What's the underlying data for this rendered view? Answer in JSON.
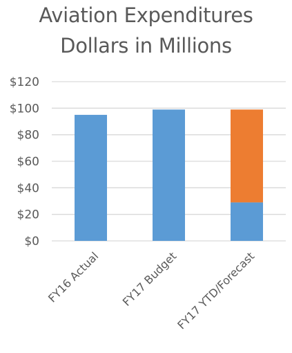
{
  "chart_data": {
    "type": "bar",
    "stacked": true,
    "title": [
      "Aviation Expenditures",
      "Dollars in Millions"
    ],
    "xlabel": "",
    "ylabel": "",
    "categories": [
      "FY16 Actual",
      "FY17 Budget",
      "FY17 YTD/Forecast"
    ],
    "series": [
      {
        "values": [
          95,
          99,
          29
        ],
        "color": "#5B9BD5"
      },
      {
        "values": [
          0,
          0,
          70
        ],
        "color": "#ED7D31"
      }
    ],
    "ylim": [
      0,
      120
    ],
    "yticks": [
      0,
      20,
      40,
      60,
      80,
      100,
      120
    ],
    "ytick_labels": [
      "$0",
      "$20",
      "$40",
      "$60",
      "$80",
      "$100",
      "$120"
    ],
    "grid": true,
    "legend": "none",
    "gridline_color": "#D9D9D9",
    "text_color": "#595959"
  }
}
